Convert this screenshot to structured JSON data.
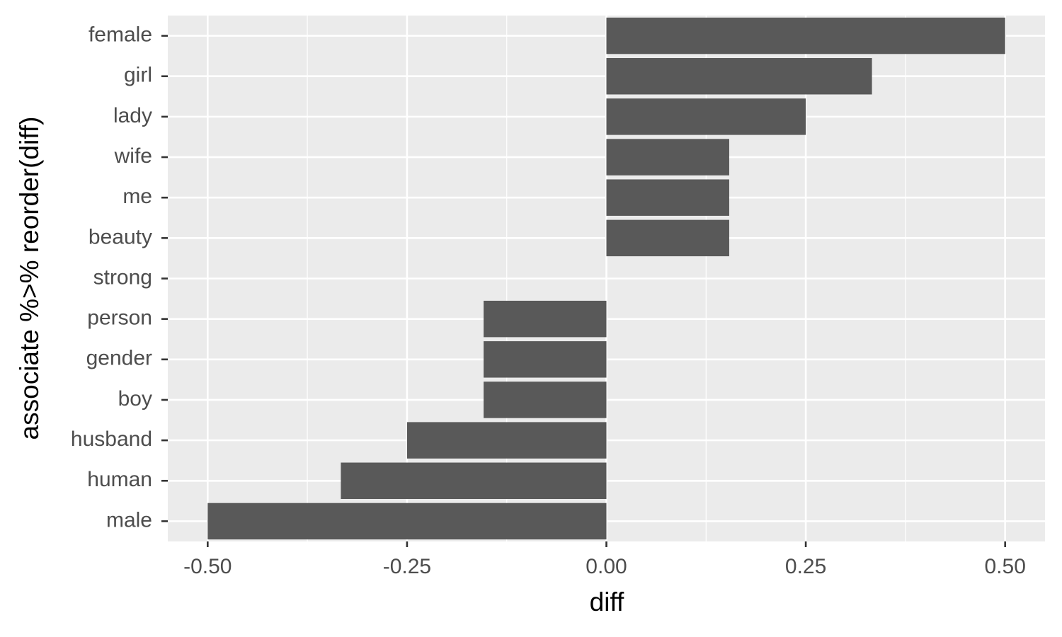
{
  "chart_data": {
    "type": "barh",
    "x_label": "diff",
    "y_label": "associate %>% reorder(diff)",
    "categories": [
      "female",
      "girl",
      "lady",
      "wife",
      "me",
      "beauty",
      "strong",
      "person",
      "gender",
      "boy",
      "husband",
      "human",
      "male"
    ],
    "values": [
      0.5,
      0.333,
      0.25,
      0.154,
      0.154,
      0.154,
      0,
      -0.154,
      -0.154,
      -0.154,
      -0.25,
      -0.333,
      -0.5
    ],
    "color": "#595959",
    "xlim": [
      -0.55,
      0.55
    ],
    "xticks": [
      {
        "value": -0.5,
        "label": "-0.50"
      },
      {
        "value": -0.25,
        "label": "-0.25"
      },
      {
        "value": 0,
        "label": "0.00"
      },
      {
        "value": 0.25,
        "label": "0.25"
      },
      {
        "value": 0.5,
        "label": "0.50"
      }
    ],
    "x_minor_grid": [
      -0.375,
      -0.125,
      0.125,
      0.375
    ],
    "grid": true
  }
}
